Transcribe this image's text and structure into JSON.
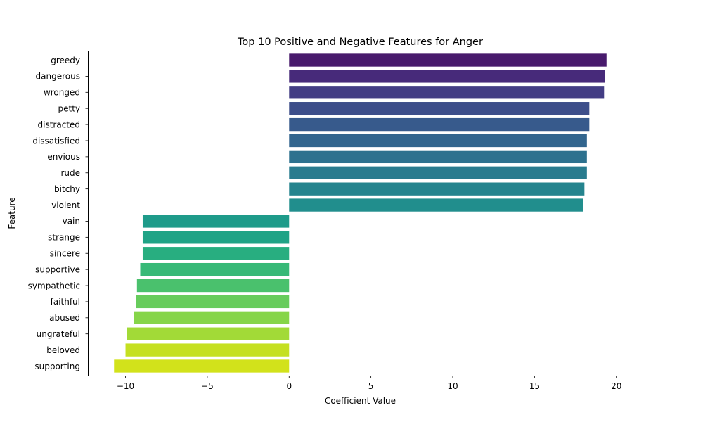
{
  "chart_data": {
    "type": "bar",
    "orientation": "horizontal",
    "title": "Top 10 Positive and Negative Features for Anger",
    "xlabel": "Coefficient Value",
    "ylabel": "Feature",
    "xlim": [
      -12.3,
      21.0
    ],
    "xticks": [
      -10,
      -5,
      0,
      5,
      10,
      15,
      20
    ],
    "xtick_labels": [
      "−10",
      "−5",
      "0",
      "5",
      "10",
      "15",
      "20"
    ],
    "grid": false,
    "categories": [
      "greedy",
      "dangerous",
      "wronged",
      "petty",
      "distracted",
      "dissatisfied",
      "envious",
      "rude",
      "bitchy",
      "violent",
      "vain",
      "strange",
      "sincere",
      "supportive",
      "sympathetic",
      "faithful",
      "abused",
      "ungrateful",
      "beloved",
      "supporting"
    ],
    "values": [
      19.4,
      19.3,
      19.25,
      18.35,
      18.35,
      18.2,
      18.2,
      18.2,
      18.05,
      17.95,
      -8.95,
      -8.95,
      -8.95,
      -9.1,
      -9.3,
      -9.35,
      -9.5,
      -9.9,
      -10.0,
      -10.7
    ],
    "colors": [
      "#481a6c",
      "#472a7a",
      "#433d84",
      "#3d4e8a",
      "#375a8c",
      "#32658e",
      "#2d718e",
      "#297b8e",
      "#25848e",
      "#218e8d",
      "#1e9b8a",
      "#20a386",
      "#28ae80",
      "#38b977",
      "#4ac16d",
      "#67cc5c",
      "#86d549",
      "#a2da37",
      "#c5e021",
      "#d2e21b"
    ]
  }
}
